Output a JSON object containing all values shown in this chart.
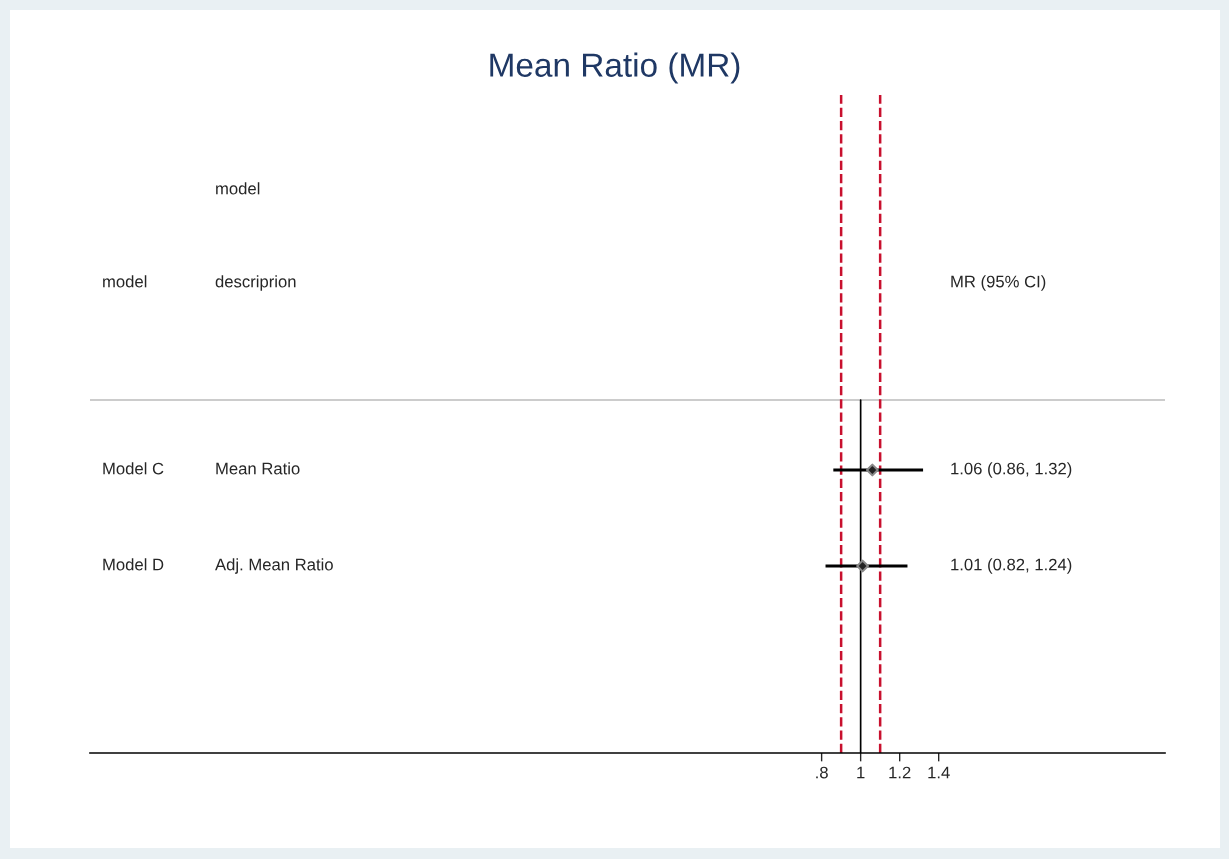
{
  "chart_data": {
    "type": "scatter",
    "title": "Mean Ratio (MR)",
    "categories": [
      "Model C",
      "Model D"
    ],
    "values": [
      1.06,
      1.01
    ],
    "errors": [
      [
        0.86,
        1.32
      ],
      [
        0.82,
        1.24
      ]
    ],
    "color": "#222222",
    "marker": "diamond",
    "orientation": "horizontal",
    "xlim": [
      -2.95,
      2.56
    ],
    "xticks": [
      {
        "value": 0.8,
        "label": ".8"
      },
      1,
      1.2,
      1.4
    ],
    "ref_lines": [
      {
        "axis": "x",
        "value": 0.9,
        "color": "#c8102e",
        "line_style": "dashed"
      },
      {
        "axis": "x",
        "value": 1.1,
        "color": "#c8102e",
        "line_style": "dashed"
      },
      {
        "axis": "x",
        "value": 1,
        "color": "#000000",
        "line_style": "solid"
      }
    ],
    "annotations": [
      "model",
      "model",
      "descriprion",
      "MR (95% CI)",
      "Mean Ratio",
      "Adj. Mean Ratio",
      "1.06 (0.86, 1.32)",
      "1.01 (0.82, 1.24)"
    ],
    "tick_labels": "x",
    "grid": false,
    "legend": false
  }
}
